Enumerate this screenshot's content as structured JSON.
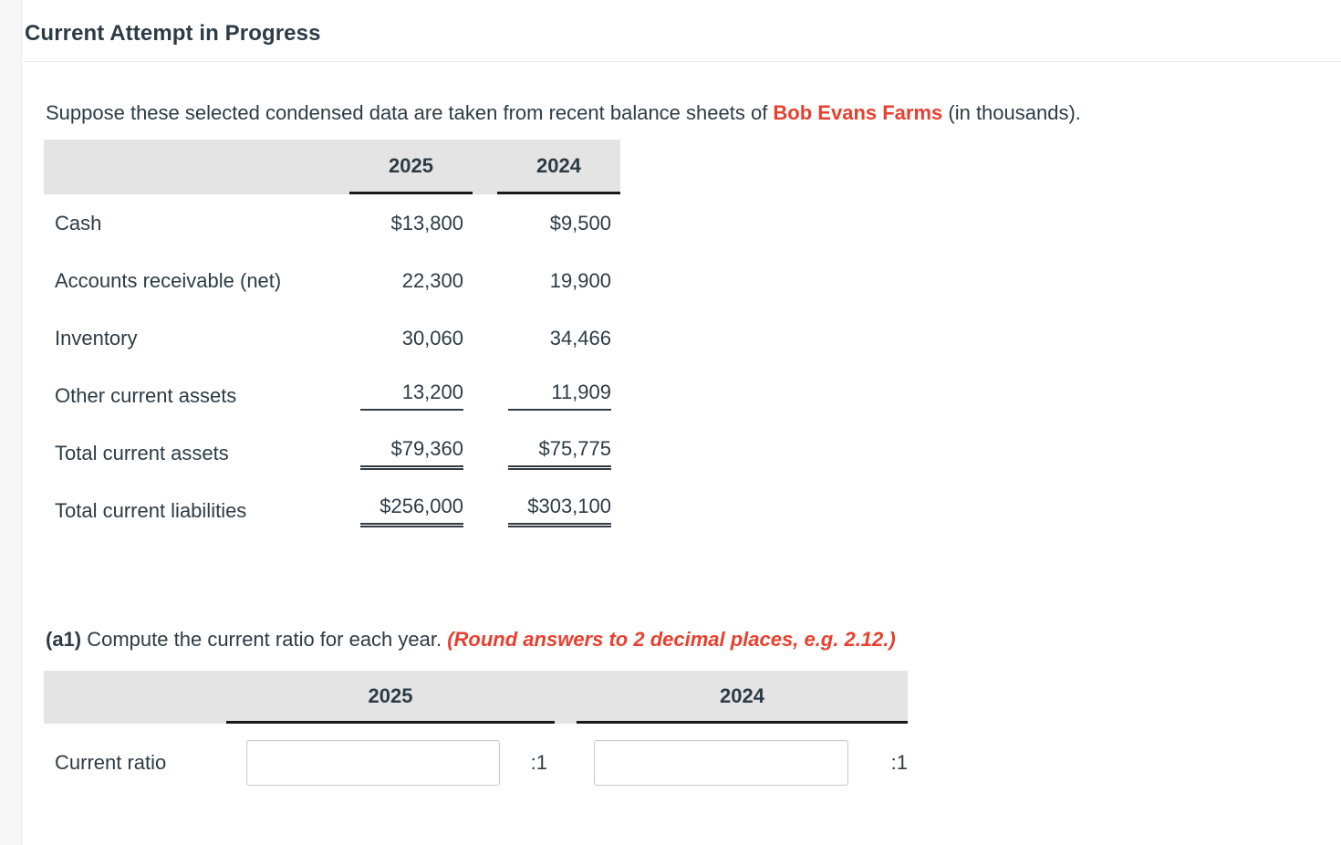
{
  "panel": {
    "title": "Current Attempt in Progress"
  },
  "intro": {
    "prefix": "Suppose these selected condensed data are taken from recent balance sheets of ",
    "company": "Bob Evans Farms",
    "suffix": " (in thousands)."
  },
  "colors": {
    "accent_red": "#e8402f",
    "text_dark": "#2d3b45",
    "table_header_gray": "#e4e4e4"
  },
  "balance_table": {
    "years": [
      "2025",
      "2024"
    ],
    "rows": [
      {
        "label": "Cash",
        "v2025": "$13,800",
        "v2024": "$9,500",
        "underline": "none"
      },
      {
        "label": "Accounts receivable (net)",
        "v2025": "22,300",
        "v2024": "19,900",
        "underline": "none"
      },
      {
        "label": "Inventory",
        "v2025": "30,060",
        "v2024": "34,466",
        "underline": "none"
      },
      {
        "label": "Other current assets",
        "v2025": "13,200",
        "v2024": "11,909",
        "underline": "single"
      },
      {
        "label": "Total current assets",
        "v2025": "$79,360",
        "v2024": "$75,775",
        "underline": "double"
      },
      {
        "label": "Total current liabilities",
        "v2025": "$256,000",
        "v2024": "$303,100",
        "underline": "double"
      }
    ]
  },
  "question": {
    "part_label": "(a1)",
    "text": " Compute the current ratio for each year. ",
    "instruction": "(Round answers to 2 decimal places, e.g. 2.12.)"
  },
  "answer_table": {
    "years": [
      "2025",
      "2024"
    ],
    "row_label": "Current ratio",
    "inputs": [
      {
        "value": "",
        "suffix": ":1"
      },
      {
        "value": "",
        "suffix": ":1"
      }
    ]
  }
}
